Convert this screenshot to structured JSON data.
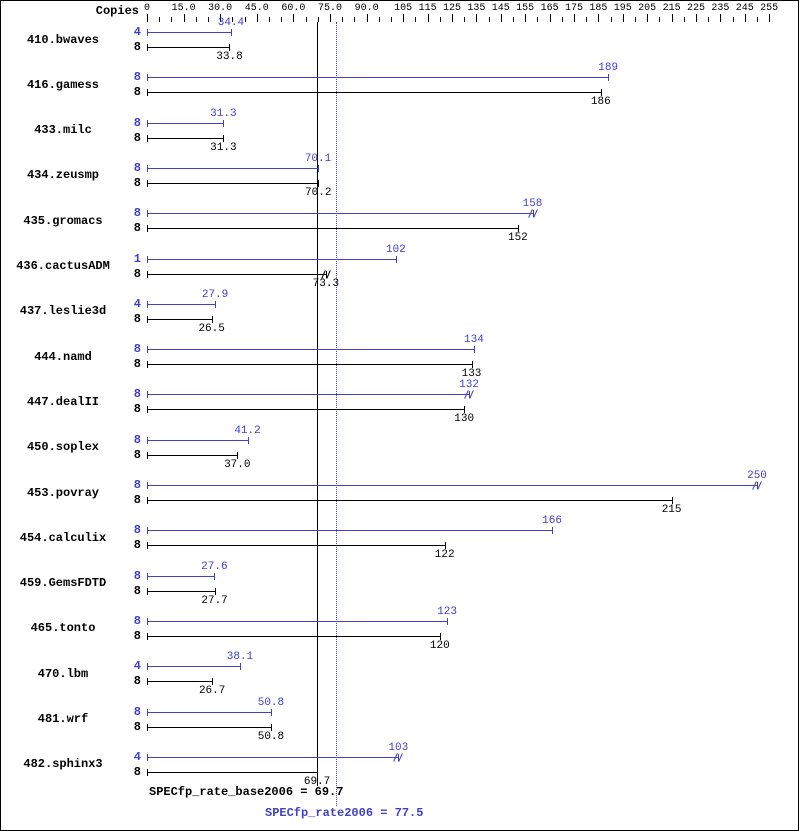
{
  "page": {
    "copies_header": "Copies",
    "colors": {
      "peak": "#4040c8",
      "base": "#000000"
    }
  },
  "chart_data": {
    "type": "bar",
    "orientation": "horizontal",
    "axis": {
      "min": 0,
      "max": 258,
      "minor_tick_step": 5,
      "ticks": [
        {
          "v": 0,
          "label": "0"
        },
        {
          "v": 15,
          "label": "15.0"
        },
        {
          "v": 30,
          "label": "30.0"
        },
        {
          "v": 45,
          "label": "45.0"
        },
        {
          "v": 60,
          "label": "60.0"
        },
        {
          "v": 75,
          "label": "75.0"
        },
        {
          "v": 90,
          "label": "90.0"
        },
        {
          "v": 105,
          "label": "105"
        },
        {
          "v": 115,
          "label": "115"
        },
        {
          "v": 125,
          "label": "125"
        },
        {
          "v": 135,
          "label": "135"
        },
        {
          "v": 145,
          "label": "145"
        },
        {
          "v": 155,
          "label": "155"
        },
        {
          "v": 165,
          "label": "165"
        },
        {
          "v": 175,
          "label": "175"
        },
        {
          "v": 185,
          "label": "185"
        },
        {
          "v": 195,
          "label": "195"
        },
        {
          "v": 205,
          "label": "205"
        },
        {
          "v": 215,
          "label": "215"
        },
        {
          "v": 225,
          "label": "225"
        },
        {
          "v": 235,
          "label": "235"
        },
        {
          "v": 245,
          "label": "245"
        },
        {
          "v": 255,
          "label": "255"
        }
      ]
    },
    "series_names": [
      "peak",
      "base"
    ],
    "benchmarks": [
      {
        "name": "410.bwaves",
        "rows": [
          {
            "series": "peak",
            "copies": 4,
            "value": 34.4,
            "label": "34.4"
          },
          {
            "series": "base",
            "copies": 8,
            "value": 33.8,
            "label": "33.8"
          }
        ]
      },
      {
        "name": "416.gamess",
        "rows": [
          {
            "series": "peak",
            "copies": 8,
            "value": 189,
            "label": "189"
          },
          {
            "series": "base",
            "copies": 8,
            "value": 186,
            "label": "186"
          }
        ]
      },
      {
        "name": "433.milc",
        "rows": [
          {
            "series": "peak",
            "copies": 8,
            "value": 31.3,
            "label": "31.3"
          },
          {
            "series": "base",
            "copies": 8,
            "value": 31.3,
            "label": "31.3"
          }
        ]
      },
      {
        "name": "434.zeusmp",
        "rows": [
          {
            "series": "peak",
            "copies": 8,
            "value": 70.1,
            "label": "70.1"
          },
          {
            "series": "base",
            "copies": 8,
            "value": 70.2,
            "label": "70.2"
          }
        ]
      },
      {
        "name": "435.gromacs",
        "rows": [
          {
            "series": "peak",
            "copies": 8,
            "value": 158,
            "label": "158",
            "spread_marks": true
          },
          {
            "series": "base",
            "copies": 8,
            "value": 152,
            "label": "152"
          }
        ]
      },
      {
        "name": "436.cactusADM",
        "rows": [
          {
            "series": "peak",
            "copies": 1,
            "value": 102,
            "label": "102"
          },
          {
            "series": "base",
            "copies": 8,
            "value": 73.3,
            "label": "73.3",
            "spread_marks": true
          }
        ]
      },
      {
        "name": "437.leslie3d",
        "rows": [
          {
            "series": "peak",
            "copies": 4,
            "value": 27.9,
            "label": "27.9"
          },
          {
            "series": "base",
            "copies": 8,
            "value": 26.5,
            "label": "26.5"
          }
        ]
      },
      {
        "name": "444.namd",
        "rows": [
          {
            "series": "peak",
            "copies": 8,
            "value": 134,
            "label": "134"
          },
          {
            "series": "base",
            "copies": 8,
            "value": 133,
            "label": "133"
          }
        ]
      },
      {
        "name": "447.dealII",
        "rows": [
          {
            "series": "peak",
            "copies": 8,
            "value": 132,
            "label": "132",
            "spread_marks": true
          },
          {
            "series": "base",
            "copies": 8,
            "value": 130,
            "label": "130"
          }
        ]
      },
      {
        "name": "450.soplex",
        "rows": [
          {
            "series": "peak",
            "copies": 8,
            "value": 41.2,
            "label": "41.2"
          },
          {
            "series": "base",
            "copies": 8,
            "value": 37.0,
            "label": "37.0"
          }
        ]
      },
      {
        "name": "453.povray",
        "rows": [
          {
            "series": "peak",
            "copies": 8,
            "value": 250,
            "label": "250",
            "spread_marks": true
          },
          {
            "series": "base",
            "copies": 8,
            "value": 215,
            "label": "215"
          }
        ]
      },
      {
        "name": "454.calculix",
        "rows": [
          {
            "series": "peak",
            "copies": 8,
            "value": 166,
            "label": "166"
          },
          {
            "series": "base",
            "copies": 8,
            "value": 122,
            "label": "122"
          }
        ]
      },
      {
        "name": "459.GemsFDTD",
        "rows": [
          {
            "series": "peak",
            "copies": 8,
            "value": 27.6,
            "label": "27.6"
          },
          {
            "series": "base",
            "copies": 8,
            "value": 27.7,
            "label": "27.7"
          }
        ]
      },
      {
        "name": "465.tonto",
        "rows": [
          {
            "series": "peak",
            "copies": 8,
            "value": 123,
            "label": "123"
          },
          {
            "series": "base",
            "copies": 8,
            "value": 120,
            "label": "120"
          }
        ]
      },
      {
        "name": "470.lbm",
        "rows": [
          {
            "series": "peak",
            "copies": 4,
            "value": 38.1,
            "label": "38.1"
          },
          {
            "series": "base",
            "copies": 8,
            "value": 26.7,
            "label": "26.7"
          }
        ]
      },
      {
        "name": "481.wrf",
        "rows": [
          {
            "series": "peak",
            "copies": 8,
            "value": 50.8,
            "label": "50.8"
          },
          {
            "series": "base",
            "copies": 8,
            "value": 50.8,
            "label": "50.8"
          }
        ]
      },
      {
        "name": "482.sphinx3",
        "rows": [
          {
            "series": "peak",
            "copies": 4,
            "value": 103,
            "label": "103",
            "spread_marks": true
          },
          {
            "series": "base",
            "copies": 8,
            "value": 69.7,
            "label": "69.7"
          }
        ]
      }
    ],
    "reference_lines": [
      {
        "id": "base",
        "label": "SPECfp_rate_base2006 = 69.7",
        "value": 69.7,
        "style": "solid",
        "color": "#000000"
      },
      {
        "id": "peak",
        "label": "SPECfp_rate2006 = 77.5",
        "value": 77.5,
        "style": "dotted",
        "color": "#4040c8"
      }
    ]
  }
}
